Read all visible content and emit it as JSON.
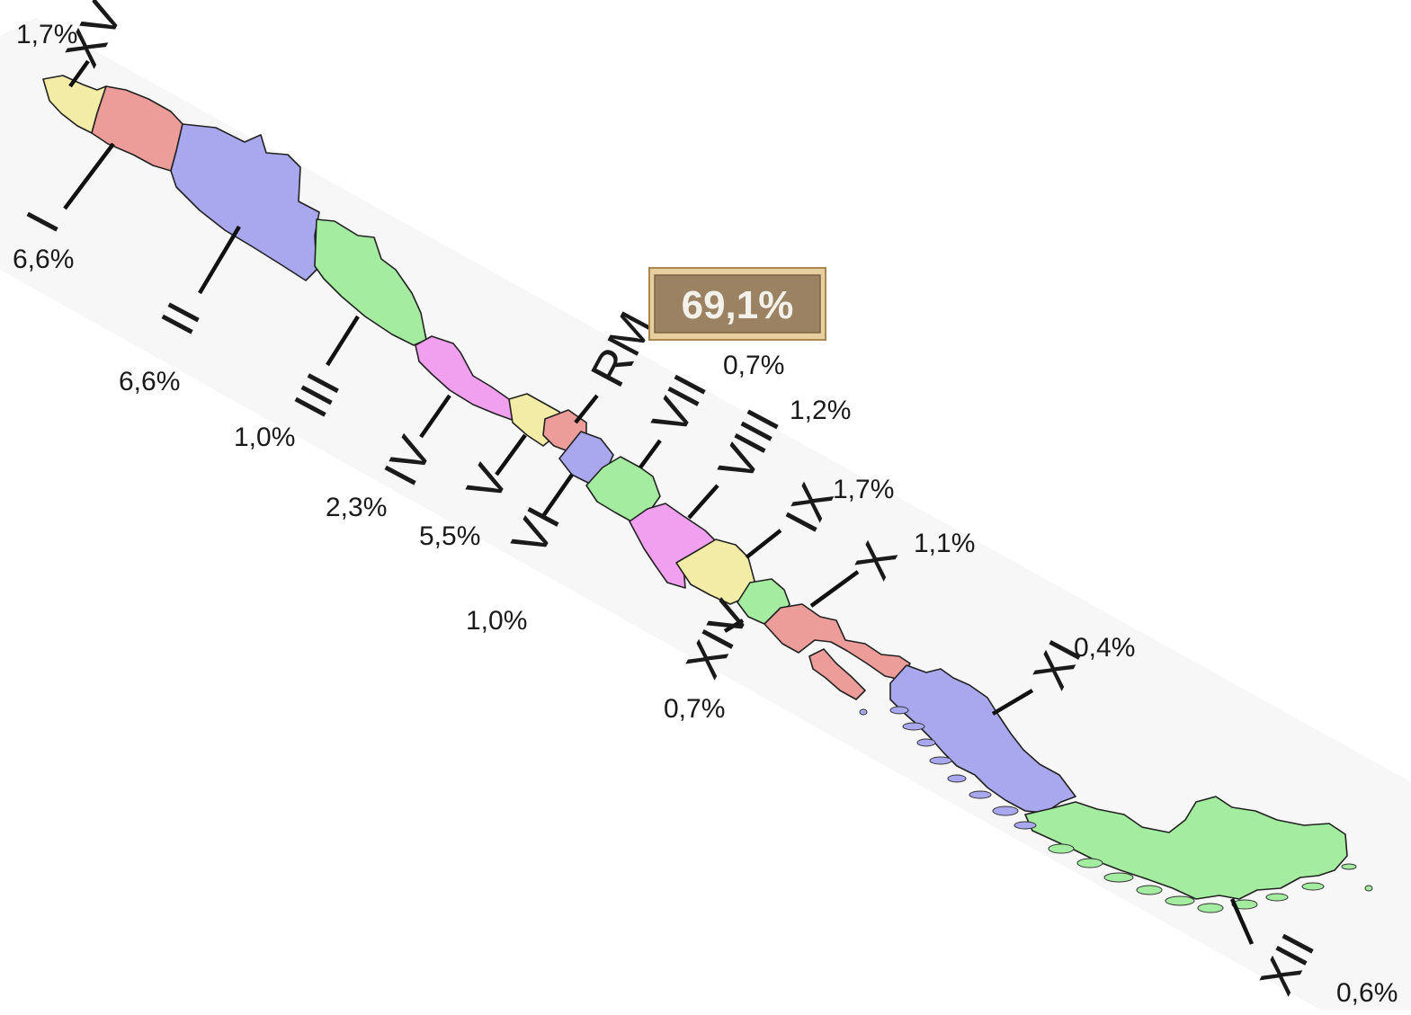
{
  "map": {
    "region_colors": {
      "yellow": "#f2eca6",
      "red": "#ec9d9a",
      "blue": "#a9a8ee",
      "green": "#a3eca0",
      "pink": "#f0a0ee"
    },
    "highlight": {
      "value": "69,1%",
      "box_fill": "#9a8263",
      "frame_fill": "#e8cfa0"
    },
    "regions": [
      {
        "id": "XV",
        "label": "XV",
        "color": "#f2eca6"
      },
      {
        "id": "I",
        "label": "I",
        "color": "#ec9d9a"
      },
      {
        "id": "II",
        "label": "II",
        "color": "#a9a8ee"
      },
      {
        "id": "III",
        "label": "III",
        "color": "#a3eca0"
      },
      {
        "id": "IV",
        "label": "IV",
        "color": "#f0a0ee"
      },
      {
        "id": "V",
        "label": "V",
        "color": "#f2eca6"
      },
      {
        "id": "RM",
        "label": "RM",
        "color": "#ec9d9a"
      },
      {
        "id": "VI",
        "label": "VI",
        "color": "#a9a8ee"
      },
      {
        "id": "VII",
        "label": "VII",
        "color": "#a3eca0"
      },
      {
        "id": "VIII",
        "label": "VIII",
        "color": "#f0a0ee"
      },
      {
        "id": "IX",
        "label": "IX",
        "color": "#f2eca6"
      },
      {
        "id": "XIV",
        "label": "XIV",
        "color": "#a3eca0"
      },
      {
        "id": "X",
        "label": "X",
        "color": "#ec9d9a"
      },
      {
        "id": "XI",
        "label": "XI",
        "color": "#a9a8ee"
      },
      {
        "id": "XII",
        "label": "XII",
        "color": "#a3eca0"
      }
    ],
    "percentages": [
      "1,7%",
      "6,6%",
      "6,6%",
      "1,0%",
      "2,3%",
      "5,5%",
      "1,0%",
      "0,7%",
      "1,2%",
      "1,7%",
      "1,1%",
      "0,4%",
      "0,7%",
      "0,6%"
    ]
  }
}
